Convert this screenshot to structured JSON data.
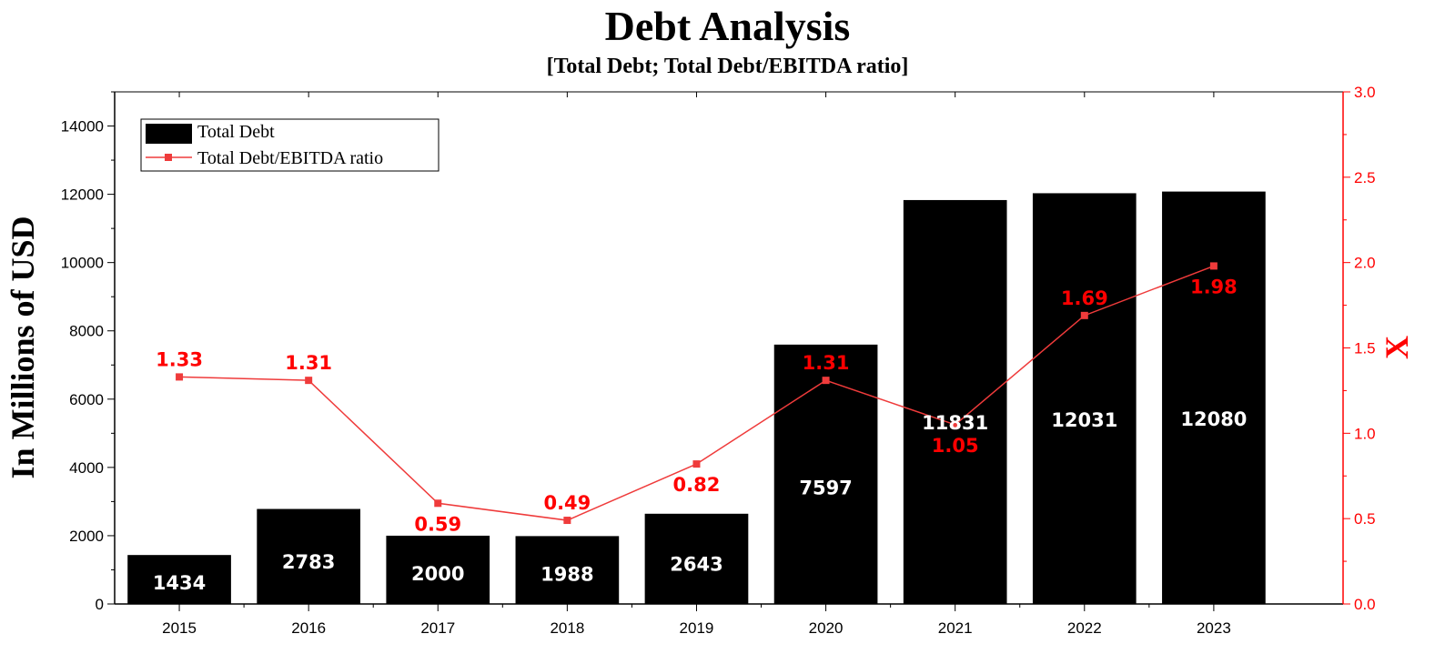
{
  "chart_data": {
    "type": "bar",
    "title": "Debt Analysis",
    "subtitle": "[Total Debt; Total Debt/EBITDA ratio]",
    "categories": [
      "2015",
      "2016",
      "2017",
      "2018",
      "2019",
      "2020",
      "2021",
      "2022",
      "2023"
    ],
    "series": [
      {
        "name": "Total Debt",
        "type": "bar",
        "axis": "left",
        "values": [
          1434,
          2783,
          2000,
          1988,
          2643,
          7597,
          11831,
          12031,
          12080
        ],
        "labels": [
          "1434",
          "2783",
          "2000",
          "1988",
          "2643",
          "7597",
          "11831",
          "12031",
          "12080"
        ]
      },
      {
        "name": "Total Debt/EBITDA ratio",
        "type": "line",
        "axis": "right",
        "values": [
          1.33,
          1.31,
          0.59,
          0.49,
          0.82,
          1.31,
          1.05,
          1.69,
          1.98
        ],
        "labels": [
          "1.33",
          "1.31",
          "0.59",
          "0.49",
          "0.82",
          "1.31",
          "1.05",
          "1.69",
          "1.98"
        ]
      }
    ],
    "ylabel": "In Millions of USD",
    "y2label": "X",
    "ylim": [
      0,
      15000
    ],
    "y2lim": [
      0,
      3.0
    ],
    "yticks": [
      "0",
      "2000",
      "4000",
      "6000",
      "8000",
      "10000",
      "12000",
      "14000"
    ],
    "y2ticks": [
      "0.0",
      "0.5",
      "1.0",
      "1.5",
      "2.0",
      "2.5",
      "3.0"
    ],
    "legend_position": "top-left",
    "grid": false,
    "colors": {
      "bar": "#000000",
      "line": "#ef3b3b",
      "ratio_text": "#ff0000",
      "right_axis": "#ff0000"
    }
  }
}
